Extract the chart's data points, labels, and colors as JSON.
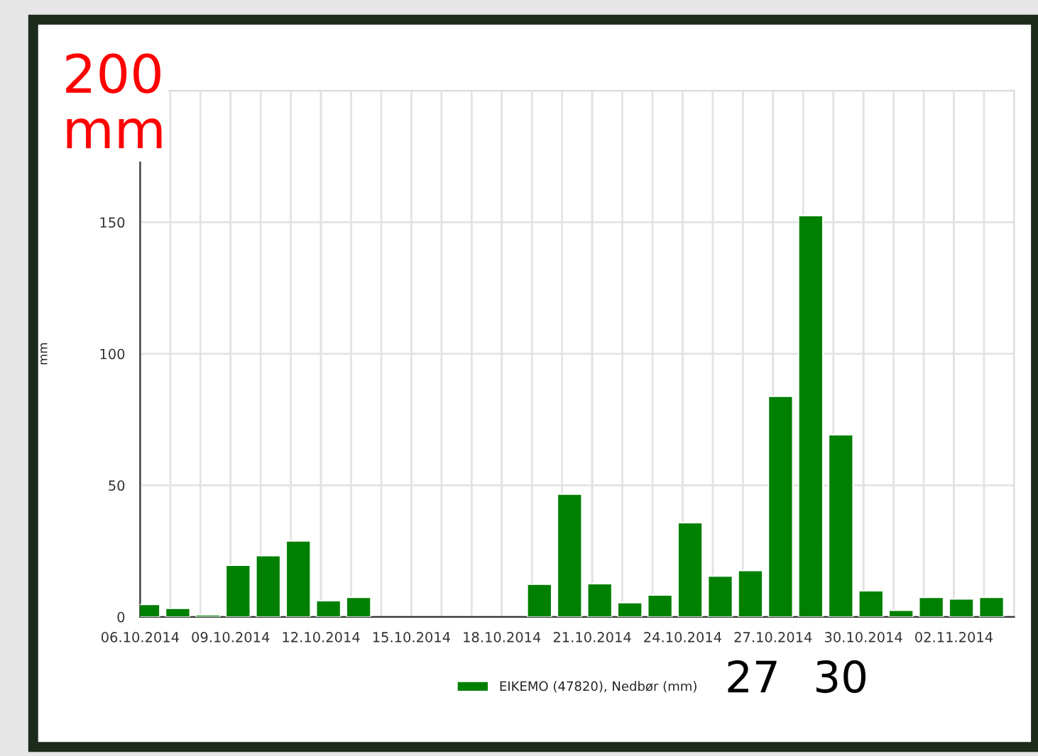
{
  "chart_data": {
    "type": "bar",
    "ylabel": "mm",
    "x": [
      "2014-10-06T06:00",
      "2014-10-07T06:00",
      "2014-10-08T06:00",
      "2014-10-09T06:00",
      "2014-10-10T06:00",
      "2014-10-11T06:00",
      "2014-10-12T06:00",
      "2014-10-13T06:00",
      "2014-10-14T06:00",
      "2014-10-15T06:00",
      "2014-10-16T06:00",
      "2014-10-17T06:00",
      "2014-10-18T06:00",
      "2014-10-19T06:00",
      "2014-10-20T06:00",
      "2014-10-21T06:00",
      "2014-10-22T06:00",
      "2014-10-23T06:00",
      "2014-10-24T06:00",
      "2014-10-25T06:00",
      "2014-10-26T06:00",
      "2014-10-27T06:00",
      "2014-10-28T06:00",
      "2014-10-29T06:00",
      "2014-10-30T06:00",
      "2014-10-31T06:00",
      "2014-11-01T06:00",
      "2014-11-02T06:00",
      "2014-11-03T06:00"
    ],
    "series": [
      {
        "name": "EIKEMO (47820), Nedbør (mm)",
        "color": "#008000",
        "values": [
          4.7,
          3.2,
          0.7,
          19.6,
          23.2,
          28.8,
          6.1,
          7.4,
          null,
          null,
          null,
          null,
          null,
          12.4,
          46.6,
          12.6,
          5.4,
          8.3,
          35.8,
          15.5,
          17.6,
          83.8,
          152.5,
          69.2,
          9.9,
          2.5,
          7.4,
          6.8,
          7.4
        ]
      }
    ],
    "xlim": [
      "2014-10-06",
      "2014-11-04"
    ],
    "xticks": [
      {
        "value": "2014-10-06",
        "label": "06.10.2014"
      },
      {
        "value": "2014-10-09",
        "label": "09.10.2014"
      },
      {
        "value": "2014-10-12",
        "label": "12.10.2014"
      },
      {
        "value": "2014-10-15",
        "label": "15.10.2014"
      },
      {
        "value": "2014-10-18",
        "label": "18.10.2014"
      },
      {
        "value": "2014-10-21",
        "label": "21.10.2014"
      },
      {
        "value": "2014-10-24",
        "label": "24.10.2014"
      },
      {
        "value": "2014-10-27",
        "label": "27.10.2014"
      },
      {
        "value": "2014-10-30",
        "label": "30.10.2014"
      },
      {
        "value": "2014-11-02",
        "label": "02.11.2014"
      }
    ],
    "ylim": [
      0,
      200
    ],
    "yticks": [
      0,
      50,
      100,
      150,
      {
        "value": 200,
        "label": null
      }
    ],
    "grid": true,
    "legend": "bottom",
    "annotations": [
      "200\nmm",
      "27",
      "30"
    ]
  }
}
